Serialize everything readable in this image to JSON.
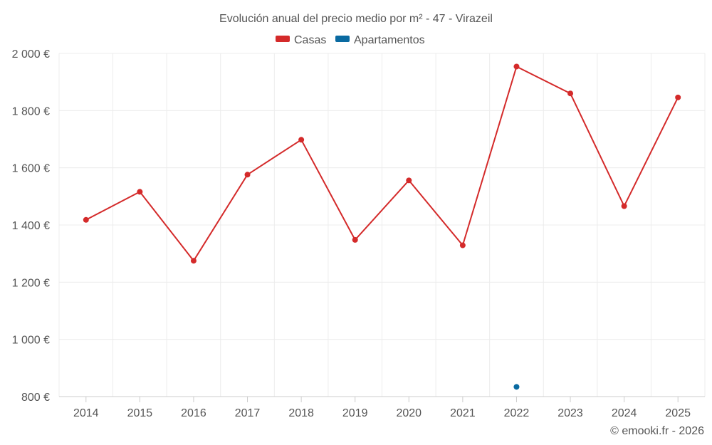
{
  "chart_data": {
    "type": "line",
    "title": "Evolución anual del precio medio por m² - 47 - Virazeil",
    "categories": [
      "2014",
      "2015",
      "2016",
      "2017",
      "2018",
      "2019",
      "2020",
      "2021",
      "2022",
      "2023",
      "2024",
      "2025"
    ],
    "series": [
      {
        "name": "Casas",
        "color": "#d42a2a",
        "values": [
          1418,
          1516,
          1275,
          1576,
          1698,
          1348,
          1556,
          1329,
          1954,
          1860,
          1466,
          1846
        ]
      },
      {
        "name": "Apartamentos",
        "color": "#0a6aa1",
        "values": [
          null,
          null,
          null,
          null,
          null,
          null,
          null,
          null,
          834,
          null,
          null,
          null
        ]
      }
    ],
    "y_ticks": [
      800,
      1000,
      1200,
      1400,
      1600,
      1800,
      2000
    ],
    "y_tick_labels": [
      "800 €",
      "1 000 €",
      "1 200 €",
      "1 400 €",
      "1 600 €",
      "1 800 €",
      "2 000 €"
    ],
    "ylim": [
      800,
      2000
    ],
    "xlabel": "",
    "ylabel": "",
    "legend_position": "top-center",
    "grid": true
  },
  "credit": "© emooki.fr - 2026"
}
